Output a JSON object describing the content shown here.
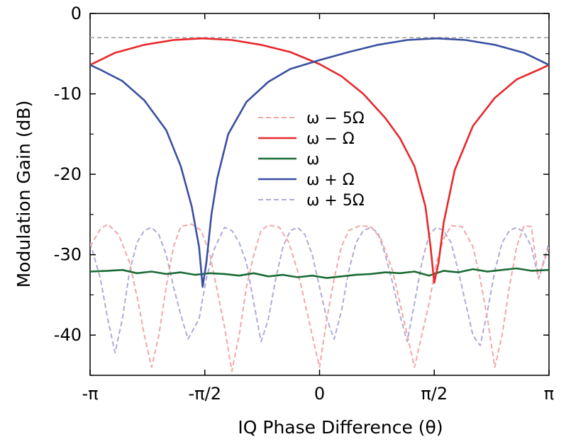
{
  "chart_data": {
    "type": "line",
    "title": "",
    "xlabel": "IQ Phase Difference (θ)",
    "ylabel": "Modulation Gain (dB)",
    "xlim": [
      -3.14159,
      3.14159
    ],
    "ylim": [
      -45,
      0
    ],
    "x_ticks": [
      {
        "value": -3.14159,
        "label": "-π"
      },
      {
        "value": -1.5708,
        "label": "-π/2"
      },
      {
        "value": 0,
        "label": "0"
      },
      {
        "value": 1.5708,
        "label": "π/2"
      },
      {
        "value": 3.14159,
        "label": "π"
      }
    ],
    "y_ticks": [
      {
        "value": 0,
        "label": "0"
      },
      {
        "value": -10,
        "label": "-10"
      },
      {
        "value": -20,
        "label": "-20"
      },
      {
        "value": -30,
        "label": "-30"
      },
      {
        "value": -40,
        "label": "-40"
      }
    ],
    "reference_line": {
      "y": -3,
      "style": "dashed",
      "color": "#b0b0b0"
    },
    "legend_placement": "center",
    "series": [
      {
        "name": "ω − 5Ω",
        "color": "#f4a6a6",
        "style": "dashed",
        "x": [
          -3.142,
          -3.0,
          -2.9,
          -2.75,
          -2.6,
          -2.48,
          -2.4,
          -2.3,
          -2.2,
          -2.1,
          -2.0,
          -1.9,
          -1.75,
          -1.62,
          -1.5,
          -1.4,
          -1.3,
          -1.2,
          -1.1,
          -1.0,
          -0.9,
          -0.8,
          -0.7,
          -0.55,
          -0.42,
          -0.3,
          -0.2,
          -0.1,
          0.0,
          0.1,
          0.2,
          0.3,
          0.4,
          0.55,
          0.7,
          0.84,
          1.0,
          1.1,
          1.2,
          1.3,
          1.4,
          1.5,
          1.6,
          1.7,
          1.8,
          1.95,
          2.1,
          2.2,
          2.3,
          2.4,
          2.5,
          2.6,
          2.7,
          2.8,
          2.9,
          3.0,
          3.142
        ],
        "y": [
          -29,
          -26.8,
          -26.2,
          -27.5,
          -31,
          -36,
          -40,
          -44,
          -40,
          -34,
          -29,
          -26.5,
          -26.2,
          -27,
          -30,
          -34.5,
          -39,
          -44.5,
          -40,
          -34,
          -30,
          -27,
          -26.3,
          -26.6,
          -28.5,
          -32,
          -36,
          -40,
          -44,
          -38,
          -33,
          -29,
          -27,
          -26.4,
          -26.5,
          -28,
          -32,
          -36,
          -40,
          -44,
          -40,
          -36,
          -31,
          -28,
          -26.4,
          -26.5,
          -29,
          -33,
          -38,
          -44,
          -40,
          -34,
          -29,
          -26.4,
          -26.5,
          -33,
          -29
        ]
      },
      {
        "name": "ω − Ω",
        "color": "#e8282b",
        "style": "solid",
        "x": [
          -3.142,
          -2.8,
          -2.4,
          -2.0,
          -1.6,
          -1.2,
          -0.8,
          -0.4,
          0.0,
          0.3,
          0.6,
          0.9,
          1.1,
          1.3,
          1.45,
          1.52,
          1.57,
          1.63,
          1.7,
          1.85,
          2.1,
          2.4,
          2.7,
          3.0,
          3.142
        ],
        "y": [
          -6.4,
          -4.9,
          -3.9,
          -3.3,
          -3.1,
          -3.3,
          -3.9,
          -4.8,
          -6.3,
          -7.8,
          -10,
          -13,
          -15.5,
          -19,
          -24,
          -29,
          -33.5,
          -31,
          -26,
          -19.5,
          -14,
          -10.5,
          -8.2,
          -7,
          -6.4
        ]
      },
      {
        "name": "ω",
        "color": "#1a6b34",
        "style": "solid",
        "x": [
          -3.142,
          -2.9,
          -2.7,
          -2.5,
          -2.3,
          -2.1,
          -1.9,
          -1.7,
          -1.5,
          -1.3,
          -1.1,
          -0.9,
          -0.7,
          -0.5,
          -0.3,
          -0.1,
          0.1,
          0.3,
          0.5,
          0.7,
          0.9,
          1.1,
          1.3,
          1.5,
          1.7,
          1.9,
          2.1,
          2.3,
          2.5,
          2.7,
          2.9,
          3.142
        ],
        "y": [
          -32.1,
          -32.0,
          -31.9,
          -32.3,
          -32.1,
          -32.4,
          -32.2,
          -32.5,
          -32.3,
          -32.4,
          -32.6,
          -32.3,
          -32.7,
          -32.5,
          -32.8,
          -32.6,
          -32.9,
          -32.7,
          -32.5,
          -32.4,
          -32.2,
          -32.3,
          -32.1,
          -32.6,
          -32.0,
          -32.2,
          -31.8,
          -32.1,
          -31.9,
          -31.7,
          -32.0,
          -31.9
        ]
      },
      {
        "name": "ω + Ω",
        "color": "#3a4fa0",
        "style": "solid",
        "x": [
          -3.142,
          -3.0,
          -2.7,
          -2.4,
          -2.1,
          -1.9,
          -1.75,
          -1.65,
          -1.6,
          -1.55,
          -1.48,
          -1.4,
          -1.25,
          -1.0,
          -0.7,
          -0.4,
          0.0,
          0.4,
          0.8,
          1.2,
          1.6,
          2.0,
          2.4,
          2.8,
          3.142
        ],
        "y": [
          -6.4,
          -7,
          -8.4,
          -10.8,
          -14.5,
          -19,
          -24,
          -29,
          -34,
          -31,
          -25,
          -20.5,
          -15,
          -11,
          -8.5,
          -6.9,
          -5.8,
          -4.8,
          -3.9,
          -3.3,
          -3.1,
          -3.3,
          -3.9,
          -4.9,
          -6.4
        ]
      },
      {
        "name": "ω + 5Ω",
        "color": "#b0aad6",
        "style": "dashed",
        "x": [
          -3.142,
          -3.0,
          -2.9,
          -2.8,
          -2.7,
          -2.6,
          -2.5,
          -2.4,
          -2.3,
          -2.2,
          -2.1,
          -2.0,
          -1.9,
          -1.8,
          -1.65,
          -1.55,
          -1.45,
          -1.35,
          -1.3,
          -1.2,
          -1.1,
          -1.0,
          -0.9,
          -0.8,
          -0.7,
          -0.6,
          -0.5,
          -0.4,
          -0.3,
          -0.2,
          -0.1,
          0.0,
          0.1,
          0.2,
          0.3,
          0.4,
          0.5,
          0.6,
          0.7,
          0.8,
          0.9,
          1.0,
          1.1,
          1.2,
          1.3,
          1.4,
          1.5,
          1.6,
          1.7,
          1.8,
          1.9,
          2.0,
          2.1,
          2.2,
          2.3,
          2.4,
          2.5,
          2.6,
          2.7,
          2.8,
          2.9,
          3.0,
          3.142
        ],
        "y": [
          -28.5,
          -33,
          -38,
          -42.2,
          -38,
          -32,
          -28.5,
          -27,
          -26.6,
          -27.5,
          -30,
          -34,
          -37.5,
          -40.5,
          -38,
          -33,
          -29.5,
          -27.5,
          -26.6,
          -27,
          -28.5,
          -31,
          -36,
          -40.8,
          -38,
          -33,
          -29,
          -27,
          -26.6,
          -27.5,
          -30,
          -34,
          -38,
          -40.5,
          -37,
          -32,
          -28.5,
          -27,
          -26.6,
          -27.3,
          -30,
          -33.5,
          -37.5,
          -40.8,
          -36,
          -31,
          -27.5,
          -26.6,
          -27,
          -28.5,
          -32,
          -36,
          -40,
          -41.3,
          -37,
          -32,
          -28.5,
          -27,
          -26.6,
          -27.2,
          -29,
          -33,
          -28.5
        ]
      }
    ]
  }
}
